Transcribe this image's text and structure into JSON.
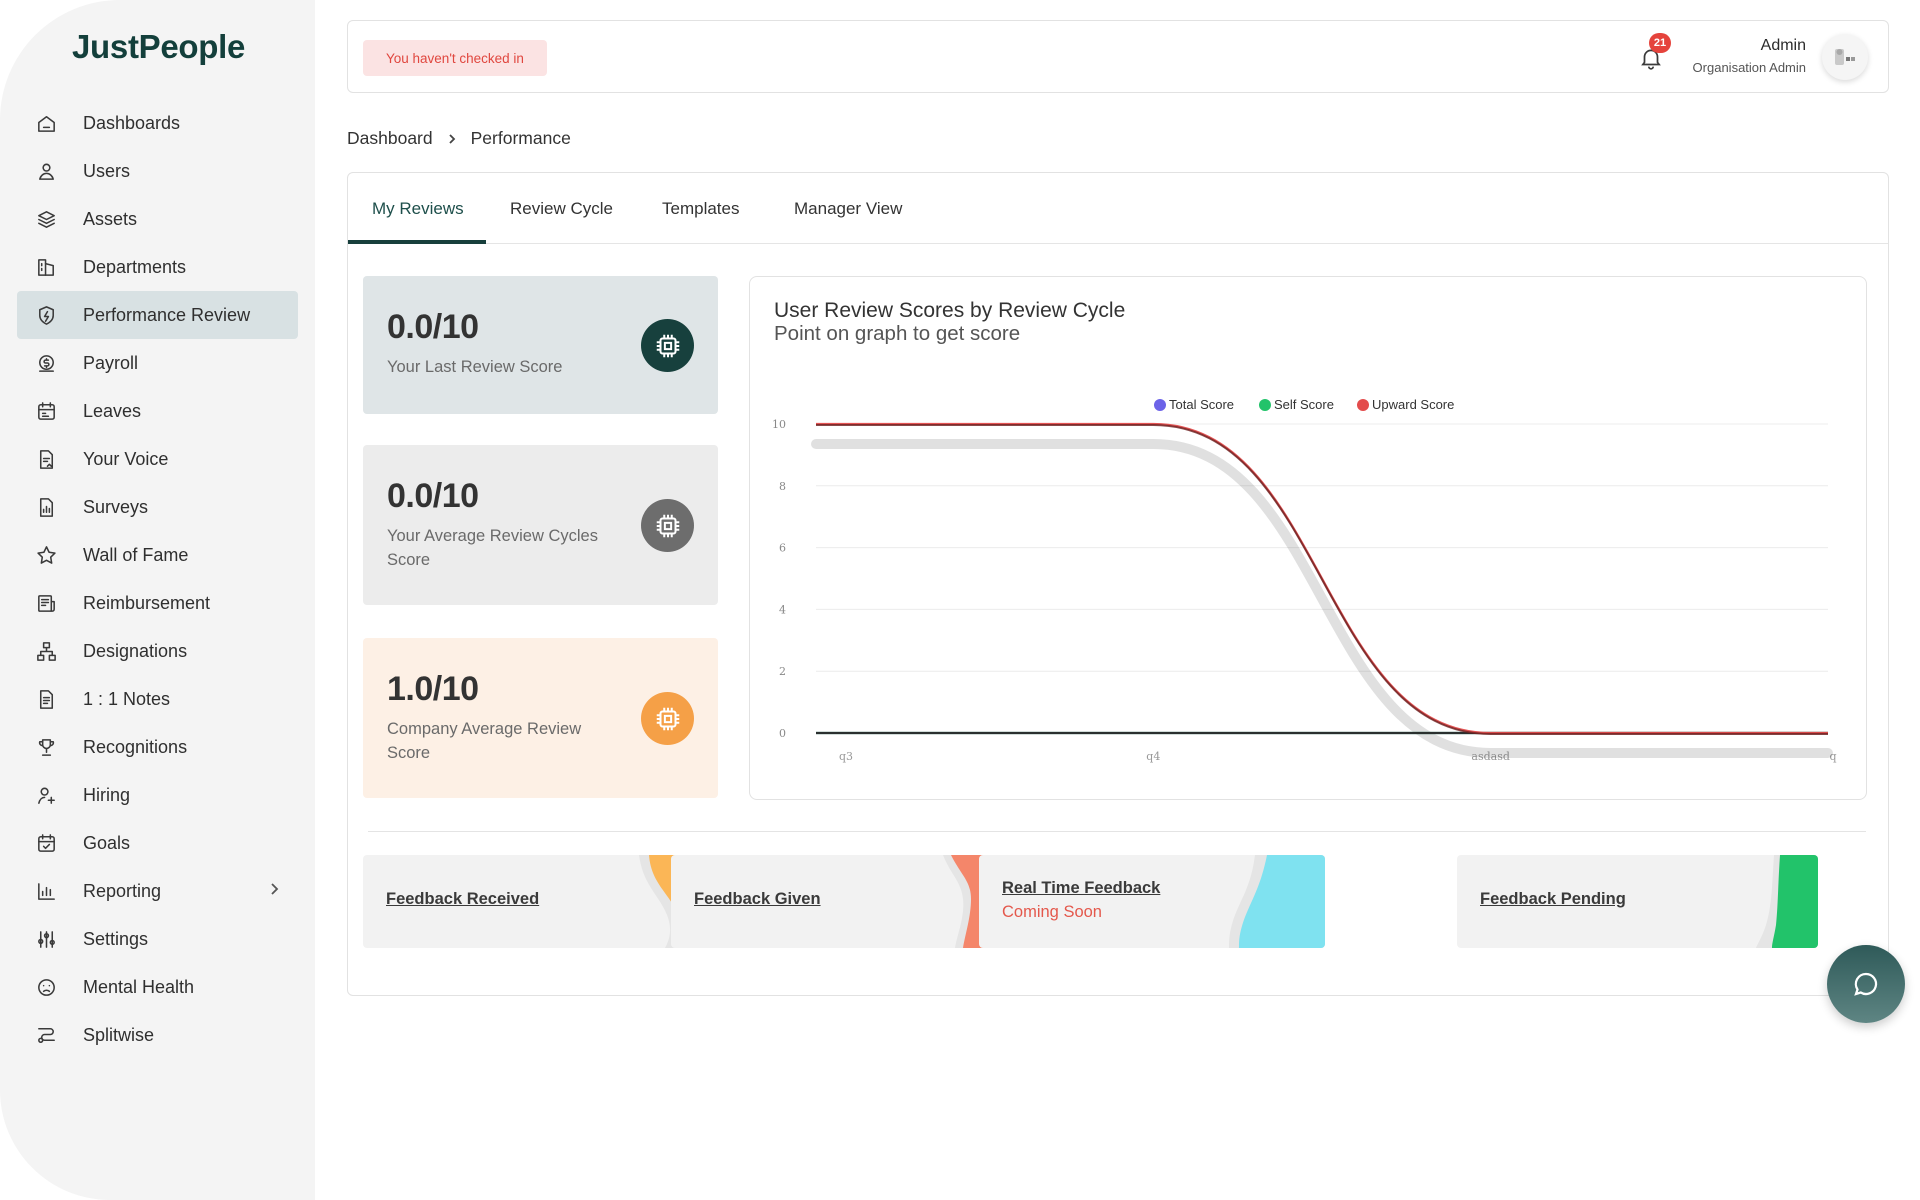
{
  "app": {
    "brand": "JustPeople"
  },
  "sidebar": {
    "items": [
      {
        "label": "Dashboards",
        "icon": "home-icon"
      },
      {
        "label": "Users",
        "icon": "user-icon"
      },
      {
        "label": "Assets",
        "icon": "layers-icon"
      },
      {
        "label": "Departments",
        "icon": "departments-icon"
      },
      {
        "label": "Performance Review",
        "icon": "shield-icon",
        "active": true
      },
      {
        "label": "Payroll",
        "icon": "coin-icon"
      },
      {
        "label": "Leaves",
        "icon": "calendar-icon"
      },
      {
        "label": "Your Voice",
        "icon": "document-icon"
      },
      {
        "label": "Surveys",
        "icon": "survey-icon"
      },
      {
        "label": "Wall of Fame",
        "icon": "star-icon"
      },
      {
        "label": "Reimbursement",
        "icon": "receipt-icon"
      },
      {
        "label": "Designations",
        "icon": "hierarchy-icon"
      },
      {
        "label": "1 : 1 Notes",
        "icon": "notes-icon"
      },
      {
        "label": "Recognitions",
        "icon": "trophy-icon"
      },
      {
        "label": "Hiring",
        "icon": "user-add-icon"
      },
      {
        "label": "Goals",
        "icon": "goals-icon"
      },
      {
        "label": "Reporting",
        "icon": "bar-chart-icon",
        "has_children": true
      },
      {
        "label": "Settings",
        "icon": "sliders-icon"
      },
      {
        "label": "Mental Health",
        "icon": "sad-face-icon"
      },
      {
        "label": "Splitwise",
        "icon": "split-icon"
      }
    ]
  },
  "topbar": {
    "checkin_notice": "You haven't checked in",
    "notification_count": "21",
    "user_name": "Admin",
    "user_role": "Organisation Admin"
  },
  "breadcrumb": {
    "root": "Dashboard",
    "current": "Performance"
  },
  "tabs": [
    {
      "label": "My Reviews",
      "active": true
    },
    {
      "label": "Review Cycle"
    },
    {
      "label": "Templates"
    },
    {
      "label": "Manager View"
    }
  ],
  "stats": [
    {
      "value": "0.0/10",
      "label": "Your Last Review Score",
      "bg": "#dfe5e7",
      "icon_bg": "#17403d"
    },
    {
      "value": "0.0/10",
      "label": "Your Average Review Cycles Score",
      "bg": "#ececec",
      "icon_bg": "#6d6d6d"
    },
    {
      "value": "1.0/10",
      "label": "Company Average Review Score",
      "bg": "#fdf0e5",
      "icon_bg": "#f5a047"
    }
  ],
  "chart": {
    "title": "User Review Scores by Review Cycle",
    "subtitle": "Point on graph to get score"
  },
  "chart_data": {
    "type": "line",
    "x": [
      "q3",
      "q4",
      "asdasd",
      "q"
    ],
    "ylim": [
      0,
      10
    ],
    "yticks": [
      0,
      2,
      4,
      6,
      8,
      10
    ],
    "legend_position": "top-center",
    "grid": true,
    "series": [
      {
        "name": "Total Score",
        "color": "#6c63e8",
        "values": [
          0,
          0,
          0,
          0
        ]
      },
      {
        "name": "Self Score",
        "color": "#22c36a",
        "values": [
          0,
          0,
          0,
          0
        ]
      },
      {
        "name": "Upward Score",
        "color": "#e34c4c",
        "values": [
          10,
          10,
          0,
          0
        ]
      }
    ]
  },
  "feedback": [
    {
      "title": "Feedback Received",
      "subtitle": "",
      "accent": "#fbb656"
    },
    {
      "title": "Feedback Given",
      "subtitle": "",
      "accent": "#f4866a"
    },
    {
      "title": "Real Time Feedback",
      "subtitle": "Coming Soon",
      "accent": "#7fe2f0"
    },
    {
      "title": "Feedback Pending",
      "subtitle": "",
      "accent": "#22c36a"
    }
  ]
}
